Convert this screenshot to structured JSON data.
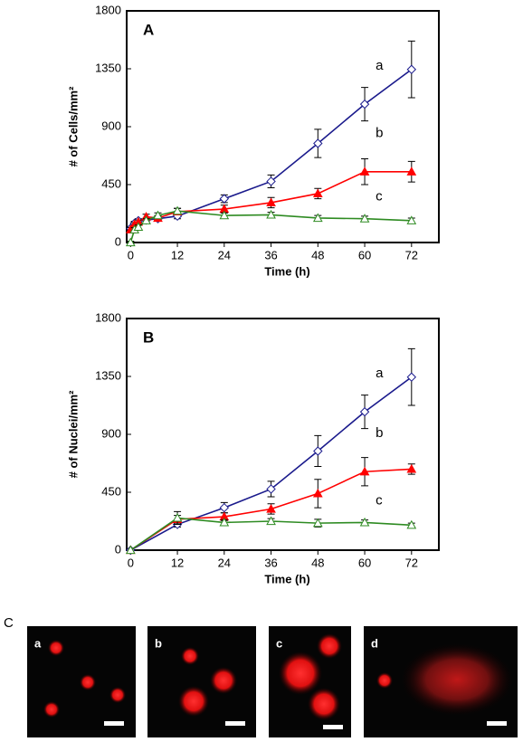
{
  "chart_data": [
    {
      "type": "line",
      "panel_label": "A",
      "ylabel": "# of Cells/mm²",
      "xlabel": "Time (h)",
      "x": [
        0,
        1,
        2,
        4,
        7,
        12,
        24,
        36,
        48,
        60,
        72
      ],
      "xlim": [
        -1,
        79
      ],
      "xticks": [
        0,
        12,
        24,
        36,
        48,
        60,
        72
      ],
      "ylim": [
        0,
        1800
      ],
      "yticks": [
        0,
        450,
        900,
        1350,
        1800
      ],
      "series": [
        {
          "name": "a",
          "color": "#1a1a8c",
          "marker": "diamond-open",
          "values": [
            110,
            150,
            170,
            175,
            185,
            205,
            340,
            475,
            770,
            1075,
            1345
          ],
          "errors": [
            15,
            15,
            15,
            15,
            20,
            20,
            30,
            50,
            110,
            130,
            220
          ]
        },
        {
          "name": "b",
          "color": "#ff0000",
          "marker": "triangle-filled",
          "values": [
            100,
            140,
            160,
            200,
            190,
            240,
            260,
            310,
            380,
            550,
            550
          ],
          "errors": [
            15,
            15,
            15,
            20,
            20,
            25,
            30,
            40,
            40,
            100,
            80
          ]
        },
        {
          "name": "c",
          "color": "#2e8b22",
          "marker": "triangle-open",
          "values": [
            0,
            100,
            120,
            170,
            210,
            245,
            210,
            215,
            190,
            185,
            170
          ],
          "errors": [
            10,
            15,
            15,
            15,
            20,
            20,
            20,
            20,
            20,
            20,
            20
          ]
        }
      ]
    },
    {
      "type": "line",
      "panel_label": "B",
      "ylabel": "# of Nuclei/mm²",
      "xlabel": "Time (h)",
      "x": [
        0,
        12,
        24,
        36,
        48,
        60,
        72
      ],
      "xlim": [
        -1,
        79
      ],
      "xticks": [
        0,
        12,
        24,
        36,
        48,
        60,
        72
      ],
      "ylim": [
        0,
        1800
      ],
      "yticks": [
        0,
        450,
        900,
        1350,
        1800
      ],
      "series": [
        {
          "name": "a",
          "color": "#1a1a8c",
          "marker": "diamond-open",
          "values": [
            0,
            200,
            330,
            475,
            770,
            1075,
            1345
          ],
          "errors": [
            0,
            20,
            40,
            60,
            120,
            130,
            220
          ]
        },
        {
          "name": "b",
          "color": "#ff0000",
          "marker": "triangle-filled",
          "values": [
            0,
            240,
            260,
            320,
            440,
            610,
            630
          ],
          "errors": [
            0,
            30,
            30,
            40,
            110,
            110,
            40
          ]
        },
        {
          "name": "c",
          "color": "#2e8b22",
          "marker": "triangle-open",
          "values": [
            0,
            250,
            215,
            225,
            210,
            215,
            195
          ],
          "errors": [
            0,
            50,
            20,
            20,
            30,
            20,
            15
          ]
        }
      ]
    }
  ],
  "image_panel": {
    "label": "C",
    "images": [
      "a",
      "b",
      "c",
      "d"
    ]
  }
}
